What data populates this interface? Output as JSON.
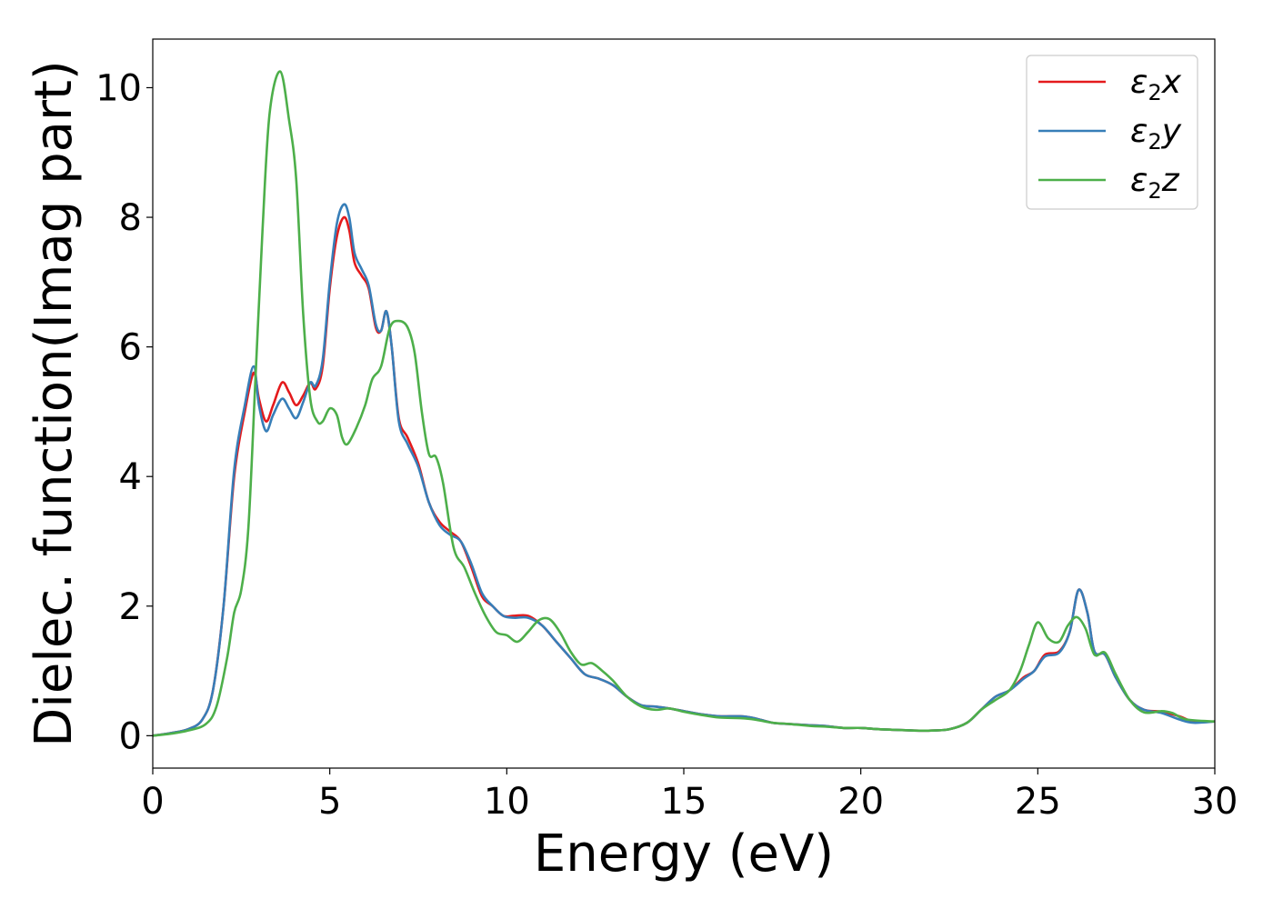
{
  "chart_data": {
    "type": "line",
    "xlabel": "Energy (eV)",
    "ylabel": "Dielec. function(Imag part)",
    "xlim": [
      0,
      30
    ],
    "ylim": [
      -0.5,
      10.75
    ],
    "xticks": [
      0,
      5,
      10,
      15,
      20,
      25,
      30
    ],
    "yticks": [
      0,
      2,
      4,
      6,
      8,
      10
    ],
    "xtick_labels": [
      "0",
      "5",
      "10",
      "15",
      "20",
      "25",
      "30"
    ],
    "ytick_labels": [
      "0",
      "2",
      "4",
      "6",
      "8",
      "10"
    ],
    "grid": false,
    "legend_position": "top-right",
    "series": [
      {
        "name": "ε2x",
        "legend": {
          "symbol": "ε",
          "sub": "2",
          "axis": "x"
        },
        "color": "#e41a1c",
        "points": [
          [
            0,
            0
          ],
          [
            0.5,
            0.04
          ],
          [
            1.0,
            0.1
          ],
          [
            1.4,
            0.25
          ],
          [
            1.7,
            0.7
          ],
          [
            2.0,
            2.0
          ],
          [
            2.3,
            4.0
          ],
          [
            2.6,
            5.0
          ],
          [
            2.85,
            5.6
          ],
          [
            3.0,
            5.2
          ],
          [
            3.2,
            4.85
          ],
          [
            3.4,
            5.1
          ],
          [
            3.65,
            5.45
          ],
          [
            3.85,
            5.3
          ],
          [
            4.05,
            5.1
          ],
          [
            4.25,
            5.25
          ],
          [
            4.45,
            5.45
          ],
          [
            4.6,
            5.35
          ],
          [
            4.8,
            5.7
          ],
          [
            5.0,
            6.9
          ],
          [
            5.2,
            7.7
          ],
          [
            5.4,
            8.0
          ],
          [
            5.55,
            7.8
          ],
          [
            5.7,
            7.3
          ],
          [
            5.9,
            7.1
          ],
          [
            6.1,
            6.9
          ],
          [
            6.3,
            6.3
          ],
          [
            6.45,
            6.25
          ],
          [
            6.6,
            6.55
          ],
          [
            6.75,
            6.0
          ],
          [
            6.95,
            4.9
          ],
          [
            7.2,
            4.6
          ],
          [
            7.5,
            4.2
          ],
          [
            7.8,
            3.6
          ],
          [
            8.1,
            3.3
          ],
          [
            8.4,
            3.15
          ],
          [
            8.7,
            3.0
          ],
          [
            9.0,
            2.6
          ],
          [
            9.3,
            2.15
          ],
          [
            9.6,
            2.0
          ],
          [
            9.9,
            1.85
          ],
          [
            10.2,
            1.85
          ],
          [
            10.6,
            1.85
          ],
          [
            11.0,
            1.7
          ],
          [
            11.4,
            1.45
          ],
          [
            11.8,
            1.2
          ],
          [
            12.2,
            0.95
          ],
          [
            12.6,
            0.88
          ],
          [
            13.0,
            0.78
          ],
          [
            13.4,
            0.6
          ],
          [
            13.8,
            0.47
          ],
          [
            14.2,
            0.45
          ],
          [
            14.6,
            0.42
          ],
          [
            15.0,
            0.38
          ],
          [
            15.5,
            0.33
          ],
          [
            16.0,
            0.3
          ],
          [
            16.6,
            0.3
          ],
          [
            17.0,
            0.27
          ],
          [
            17.5,
            0.2
          ],
          [
            18.0,
            0.18
          ],
          [
            18.6,
            0.16
          ],
          [
            19.0,
            0.15
          ],
          [
            19.5,
            0.12
          ],
          [
            20.0,
            0.12
          ],
          [
            20.5,
            0.1
          ],
          [
            21.0,
            0.09
          ],
          [
            21.5,
            0.08
          ],
          [
            22.0,
            0.08
          ],
          [
            22.5,
            0.1
          ],
          [
            23.0,
            0.2
          ],
          [
            23.4,
            0.4
          ],
          [
            23.8,
            0.6
          ],
          [
            24.2,
            0.7
          ],
          [
            24.6,
            0.9
          ],
          [
            24.9,
            1.0
          ],
          [
            25.2,
            1.25
          ],
          [
            25.6,
            1.3
          ],
          [
            25.9,
            1.6
          ],
          [
            26.15,
            2.25
          ],
          [
            26.4,
            1.9
          ],
          [
            26.6,
            1.3
          ],
          [
            26.9,
            1.25
          ],
          [
            27.2,
            0.9
          ],
          [
            27.6,
            0.55
          ],
          [
            28.0,
            0.4
          ],
          [
            28.5,
            0.37
          ],
          [
            29.0,
            0.3
          ],
          [
            29.4,
            0.22
          ],
          [
            30.0,
            0.22
          ]
        ]
      },
      {
        "name": "ε2y",
        "legend": {
          "symbol": "ε",
          "sub": "2",
          "axis": "y"
        },
        "color": "#377eb8",
        "points": [
          [
            0,
            0
          ],
          [
            0.5,
            0.04
          ],
          [
            1.0,
            0.1
          ],
          [
            1.4,
            0.25
          ],
          [
            1.7,
            0.7
          ],
          [
            2.0,
            2.0
          ],
          [
            2.3,
            4.1
          ],
          [
            2.6,
            5.1
          ],
          [
            2.85,
            5.7
          ],
          [
            3.0,
            5.1
          ],
          [
            3.2,
            4.7
          ],
          [
            3.4,
            4.95
          ],
          [
            3.65,
            5.2
          ],
          [
            3.85,
            5.05
          ],
          [
            4.05,
            4.9
          ],
          [
            4.25,
            5.15
          ],
          [
            4.45,
            5.45
          ],
          [
            4.6,
            5.4
          ],
          [
            4.8,
            5.8
          ],
          [
            5.0,
            7.0
          ],
          [
            5.2,
            7.9
          ],
          [
            5.4,
            8.2
          ],
          [
            5.55,
            8.0
          ],
          [
            5.7,
            7.45
          ],
          [
            5.9,
            7.2
          ],
          [
            6.1,
            6.95
          ],
          [
            6.3,
            6.35
          ],
          [
            6.45,
            6.25
          ],
          [
            6.6,
            6.55
          ],
          [
            6.75,
            6.0
          ],
          [
            6.95,
            4.85
          ],
          [
            7.2,
            4.5
          ],
          [
            7.5,
            4.15
          ],
          [
            7.8,
            3.6
          ],
          [
            8.1,
            3.25
          ],
          [
            8.4,
            3.1
          ],
          [
            8.7,
            3.0
          ],
          [
            9.0,
            2.65
          ],
          [
            9.3,
            2.2
          ],
          [
            9.6,
            2.0
          ],
          [
            9.9,
            1.85
          ],
          [
            10.2,
            1.82
          ],
          [
            10.6,
            1.82
          ],
          [
            11.0,
            1.7
          ],
          [
            11.4,
            1.45
          ],
          [
            11.8,
            1.2
          ],
          [
            12.2,
            0.95
          ],
          [
            12.6,
            0.88
          ],
          [
            13.0,
            0.78
          ],
          [
            13.4,
            0.6
          ],
          [
            13.8,
            0.47
          ],
          [
            14.2,
            0.45
          ],
          [
            14.6,
            0.42
          ],
          [
            15.0,
            0.38
          ],
          [
            15.5,
            0.33
          ],
          [
            16.0,
            0.3
          ],
          [
            16.6,
            0.3
          ],
          [
            17.0,
            0.27
          ],
          [
            17.5,
            0.2
          ],
          [
            18.0,
            0.18
          ],
          [
            18.6,
            0.16
          ],
          [
            19.0,
            0.15
          ],
          [
            19.5,
            0.12
          ],
          [
            20.0,
            0.12
          ],
          [
            20.5,
            0.1
          ],
          [
            21.0,
            0.09
          ],
          [
            21.5,
            0.08
          ],
          [
            22.0,
            0.08
          ],
          [
            22.5,
            0.1
          ],
          [
            23.0,
            0.2
          ],
          [
            23.4,
            0.4
          ],
          [
            23.8,
            0.6
          ],
          [
            24.2,
            0.7
          ],
          [
            24.6,
            0.88
          ],
          [
            24.9,
            1.0
          ],
          [
            25.2,
            1.22
          ],
          [
            25.6,
            1.28
          ],
          [
            25.9,
            1.6
          ],
          [
            26.15,
            2.25
          ],
          [
            26.4,
            1.9
          ],
          [
            26.6,
            1.3
          ],
          [
            26.9,
            1.25
          ],
          [
            27.2,
            0.9
          ],
          [
            27.6,
            0.55
          ],
          [
            28.0,
            0.4
          ],
          [
            28.5,
            0.35
          ],
          [
            29.0,
            0.25
          ],
          [
            29.4,
            0.2
          ],
          [
            30.0,
            0.22
          ]
        ]
      },
      {
        "name": "ε2z",
        "legend": {
          "symbol": "ε",
          "sub": "2",
          "axis": "z"
        },
        "color": "#4daf4a",
        "points": [
          [
            0,
            0
          ],
          [
            0.5,
            0.03
          ],
          [
            1.0,
            0.08
          ],
          [
            1.5,
            0.18
          ],
          [
            1.8,
            0.45
          ],
          [
            2.1,
            1.2
          ],
          [
            2.3,
            1.9
          ],
          [
            2.5,
            2.25
          ],
          [
            2.7,
            3.2
          ],
          [
            2.9,
            5.5
          ],
          [
            3.1,
            7.8
          ],
          [
            3.3,
            9.6
          ],
          [
            3.6,
            10.25
          ],
          [
            3.85,
            9.5
          ],
          [
            4.05,
            8.6
          ],
          [
            4.25,
            6.5
          ],
          [
            4.45,
            5.2
          ],
          [
            4.65,
            4.85
          ],
          [
            4.8,
            4.85
          ],
          [
            5.0,
            5.05
          ],
          [
            5.2,
            4.95
          ],
          [
            5.35,
            4.6
          ],
          [
            5.5,
            4.5
          ],
          [
            5.75,
            4.75
          ],
          [
            6.0,
            5.1
          ],
          [
            6.2,
            5.5
          ],
          [
            6.45,
            5.7
          ],
          [
            6.7,
            6.3
          ],
          [
            6.95,
            6.4
          ],
          [
            7.2,
            6.3
          ],
          [
            7.4,
            5.9
          ],
          [
            7.6,
            5.0
          ],
          [
            7.8,
            4.35
          ],
          [
            8.0,
            4.3
          ],
          [
            8.2,
            3.9
          ],
          [
            8.5,
            2.9
          ],
          [
            8.8,
            2.6
          ],
          [
            9.1,
            2.2
          ],
          [
            9.4,
            1.85
          ],
          [
            9.7,
            1.6
          ],
          [
            10.0,
            1.55
          ],
          [
            10.3,
            1.45
          ],
          [
            10.6,
            1.6
          ],
          [
            10.9,
            1.78
          ],
          [
            11.2,
            1.8
          ],
          [
            11.5,
            1.6
          ],
          [
            11.8,
            1.3
          ],
          [
            12.1,
            1.1
          ],
          [
            12.4,
            1.12
          ],
          [
            12.7,
            1.0
          ],
          [
            13.0,
            0.85
          ],
          [
            13.4,
            0.6
          ],
          [
            13.8,
            0.45
          ],
          [
            14.2,
            0.4
          ],
          [
            14.6,
            0.42
          ],
          [
            15.0,
            0.37
          ],
          [
            15.5,
            0.32
          ],
          [
            16.0,
            0.28
          ],
          [
            16.6,
            0.27
          ],
          [
            17.0,
            0.25
          ],
          [
            17.5,
            0.2
          ],
          [
            18.0,
            0.18
          ],
          [
            18.6,
            0.15
          ],
          [
            19.0,
            0.14
          ],
          [
            19.5,
            0.12
          ],
          [
            20.0,
            0.12
          ],
          [
            20.5,
            0.1
          ],
          [
            21.0,
            0.09
          ],
          [
            21.5,
            0.08
          ],
          [
            22.0,
            0.08
          ],
          [
            22.5,
            0.1
          ],
          [
            23.0,
            0.2
          ],
          [
            23.4,
            0.4
          ],
          [
            23.8,
            0.55
          ],
          [
            24.2,
            0.7
          ],
          [
            24.5,
            1.0
          ],
          [
            24.75,
            1.4
          ],
          [
            25.0,
            1.75
          ],
          [
            25.3,
            1.5
          ],
          [
            25.6,
            1.45
          ],
          [
            25.85,
            1.7
          ],
          [
            26.1,
            1.83
          ],
          [
            26.35,
            1.65
          ],
          [
            26.6,
            1.25
          ],
          [
            26.9,
            1.28
          ],
          [
            27.2,
            0.95
          ],
          [
            27.6,
            0.55
          ],
          [
            28.0,
            0.36
          ],
          [
            28.5,
            0.38
          ],
          [
            28.8,
            0.35
          ],
          [
            29.2,
            0.25
          ],
          [
            30.0,
            0.22
          ]
        ]
      }
    ]
  }
}
